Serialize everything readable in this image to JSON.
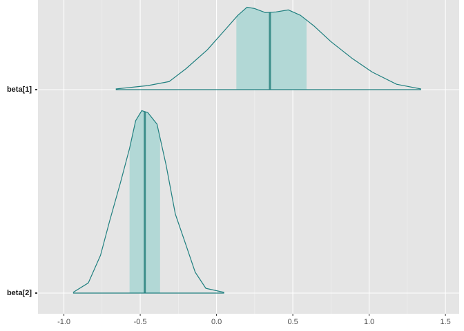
{
  "chart_data": {
    "type": "ridgeline",
    "xlim": [
      -1.17,
      1.59
    ],
    "xticks": [
      {
        "value": -1,
        "label": "-1.0"
      },
      -0.5,
      {
        "value": 0,
        "label": "0.0"
      },
      0.5,
      {
        "value": 1,
        "label": "1.0"
      },
      1.5
    ],
    "grid": true,
    "outline_color": "#1f7f7f",
    "fill_color": "#b2d8d6",
    "median_color": "#3b8e8a",
    "series": [
      {
        "name": "beta[1]",
        "x": [
          -0.66,
          -0.45,
          -0.31,
          -0.2,
          -0.06,
          0.05,
          0.14,
          0.2,
          0.25,
          0.32,
          0.39,
          0.47,
          0.55,
          0.64,
          0.75,
          0.89,
          1.02,
          1.18,
          1.34
        ],
        "density": [
          0.01,
          0.06,
          0.12,
          0.31,
          0.59,
          0.87,
          1.1,
          1.22,
          1.2,
          1.14,
          1.15,
          1.18,
          1.1,
          0.94,
          0.71,
          0.46,
          0.26,
          0.08,
          0.01
        ],
        "interval": [
          0.13,
          0.59
        ],
        "median": 0.35
      },
      {
        "name": "beta[2]",
        "x": [
          -0.94,
          -0.84,
          -0.76,
          -0.7,
          -0.63,
          -0.57,
          -0.53,
          -0.49,
          -0.45,
          -0.39,
          -0.33,
          -0.27,
          -0.2,
          -0.14,
          -0.07,
          0.05
        ],
        "density": [
          0.01,
          0.15,
          0.56,
          1.07,
          1.63,
          2.14,
          2.55,
          2.7,
          2.67,
          2.5,
          1.89,
          1.17,
          0.71,
          0.31,
          0.07,
          0.01
        ],
        "interval": [
          -0.57,
          -0.37
        ],
        "median": -0.47
      }
    ]
  }
}
